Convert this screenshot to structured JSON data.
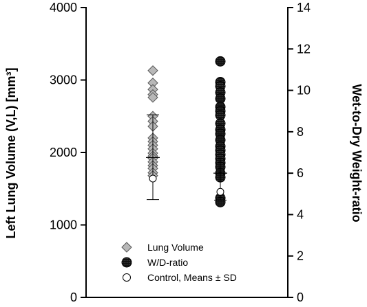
{
  "chart_data": {
    "type": "scatter",
    "left_axis": {
      "label": "Left Lung Volume (V,L) [mm³]",
      "ylim": [
        0,
        4000
      ],
      "ticks": [
        0,
        1000,
        2000,
        3000,
        4000
      ],
      "tick_labels": [
        "0",
        "1000",
        "2000",
        "3000",
        "4000"
      ]
    },
    "right_axis": {
      "label": "Wet-to-Dry Weight-ratio",
      "ylim": [
        0,
        14
      ],
      "ticks": [
        0,
        2,
        4,
        6,
        8,
        10,
        12,
        14
      ],
      "tick_labels": [
        "0",
        "2",
        "4",
        "6",
        "8",
        "10",
        "12",
        "14"
      ]
    },
    "grid": false,
    "series": [
      {
        "name": "Lung Volume",
        "axis": "left",
        "marker": "diamond",
        "color": "#b8b8b8",
        "values": [
          3130,
          2960,
          2870,
          2800,
          2760,
          2500,
          2430,
          2360,
          2200,
          2150,
          2100,
          2050,
          1990,
          1950,
          1920,
          1870,
          1820,
          1780,
          1720,
          1680
        ],
        "mean": 1930,
        "sd_upper": 2520,
        "sd_lower": 1350
      },
      {
        "name": "W/D-ratio",
        "axis": "right",
        "marker": "filled-circle",
        "color": "#1a1a1a",
        "values": [
          11.4,
          10.4,
          10.2,
          9.9,
          9.6,
          9.2,
          9.0,
          8.8,
          8.4,
          8.1,
          7.9,
          7.6,
          7.3,
          7.1,
          6.9,
          6.7,
          6.5,
          6.3,
          6.0,
          5.8,
          4.8,
          4.6
        ],
        "mean": 6.0,
        "sd_upper": 6.7,
        "sd_lower": 4.7
      },
      {
        "name": "Control, Means ± SD",
        "marker": "open-circle",
        "color": "#ffffff",
        "points": [
          {
            "series": "Lung Volume",
            "value": 1640
          },
          {
            "series": "W/D-ratio",
            "value": 5.1
          }
        ]
      }
    ],
    "legend": {
      "position": "bottom-center",
      "items": [
        {
          "label": "Lung Volume",
          "marker": "diamond"
        },
        {
          "label": "W/D-ratio",
          "marker": "filled-circle"
        },
        {
          "label": "Control, Means ± SD",
          "marker": "open-circle"
        }
      ]
    }
  }
}
